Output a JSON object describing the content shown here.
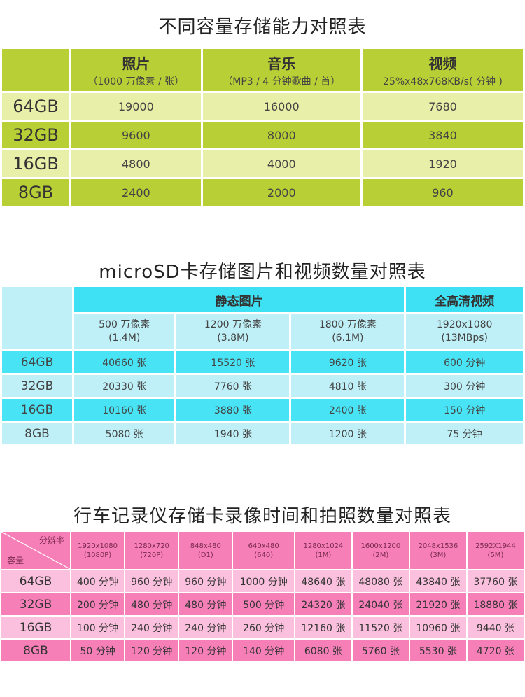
{
  "section1": {
    "title": "不同容量存储能力对照表",
    "headers": [
      {
        "title": "照片",
        "sub": "（1000 万像素 / 张）"
      },
      {
        "title": "音乐",
        "sub": "（MP3 / 4 分钟歌曲 / 首）"
      },
      {
        "title": "视频",
        "sub": "25%x48x768KB/s( 分钟 )"
      }
    ],
    "rows": [
      {
        "cap": "64GB",
        "cells": [
          "19000",
          "16000",
          "7680"
        ]
      },
      {
        "cap": "32GB",
        "cells": [
          "9600",
          "8000",
          "3840"
        ]
      },
      {
        "cap": "16GB",
        "cells": [
          "4800",
          "4000",
          "1920"
        ]
      },
      {
        "cap": "8GB",
        "cells": [
          "2400",
          "2000",
          "960"
        ]
      }
    ]
  },
  "section2": {
    "title": "microSD卡存储图片和视频数量对照表",
    "group_photo": "静态图片",
    "group_video": "全高清视频",
    "subheaders": [
      {
        "l1": "500 万像素",
        "l2": "(1.4M)"
      },
      {
        "l1": "1200 万像素",
        "l2": "(3.8M)"
      },
      {
        "l1": "1800 万像素",
        "l2": "(6.1M)"
      },
      {
        "l1": "1920x1080",
        "l2": "(13MBps)"
      }
    ],
    "rows": [
      {
        "cap": "64GB",
        "cells": [
          "40660 张",
          "15520 张",
          "9620 张",
          "600 分钟"
        ]
      },
      {
        "cap": "32GB",
        "cells": [
          "20330 张",
          "7760 张",
          "4810 张",
          "300 分钟"
        ]
      },
      {
        "cap": "16GB",
        "cells": [
          "10160 张",
          "3880 张",
          "2400 张",
          "150 分钟"
        ]
      },
      {
        "cap": "8GB",
        "cells": [
          "5080 张",
          "1940 张",
          "1200 张",
          "75 分钟"
        ]
      }
    ]
  },
  "section3": {
    "title": "行车记录仪存储卡录像时间和拍照数量对照表",
    "corner_top": "分辨率",
    "corner_bottom": "容量",
    "headers": [
      {
        "l1": "1920x1080",
        "l2": "(1080P)"
      },
      {
        "l1": "1280x720",
        "l2": "(720P)"
      },
      {
        "l1": "848x480",
        "l2": "(D1)"
      },
      {
        "l1": "640x480",
        "l2": "(640)"
      },
      {
        "l1": "1280x1024",
        "l2": "(1M)"
      },
      {
        "l1": "1600x1200",
        "l2": "(2M)"
      },
      {
        "l1": "2048x1536",
        "l2": "(3M)"
      },
      {
        "l1": "2592X1944",
        "l2": "(5M)"
      }
    ],
    "rows": [
      {
        "cap": "64GB",
        "cells": [
          "400 分钟",
          "960 分钟",
          "960 分钟",
          "1000 分钟",
          "48640 张",
          "48080 张",
          "43840 张",
          "37760 张"
        ]
      },
      {
        "cap": "32GB",
        "cells": [
          "200 分钟",
          "480 分钟",
          "480 分钟",
          "500 分钟",
          "24320 张",
          "24040 张",
          "21920 张",
          "18880 张"
        ]
      },
      {
        "cap": "16GB",
        "cells": [
          "100 分钟",
          "240 分钟",
          "240 分钟",
          "260 分钟",
          "12160 张",
          "11520 张",
          "10960 张",
          "9440 张"
        ]
      },
      {
        "cap": "8GB",
        "cells": [
          "50 分钟",
          "120 分钟",
          "120 分钟",
          "140 分钟",
          "6080 张",
          "5760 张",
          "5530 张",
          "4720 张"
        ]
      }
    ]
  }
}
